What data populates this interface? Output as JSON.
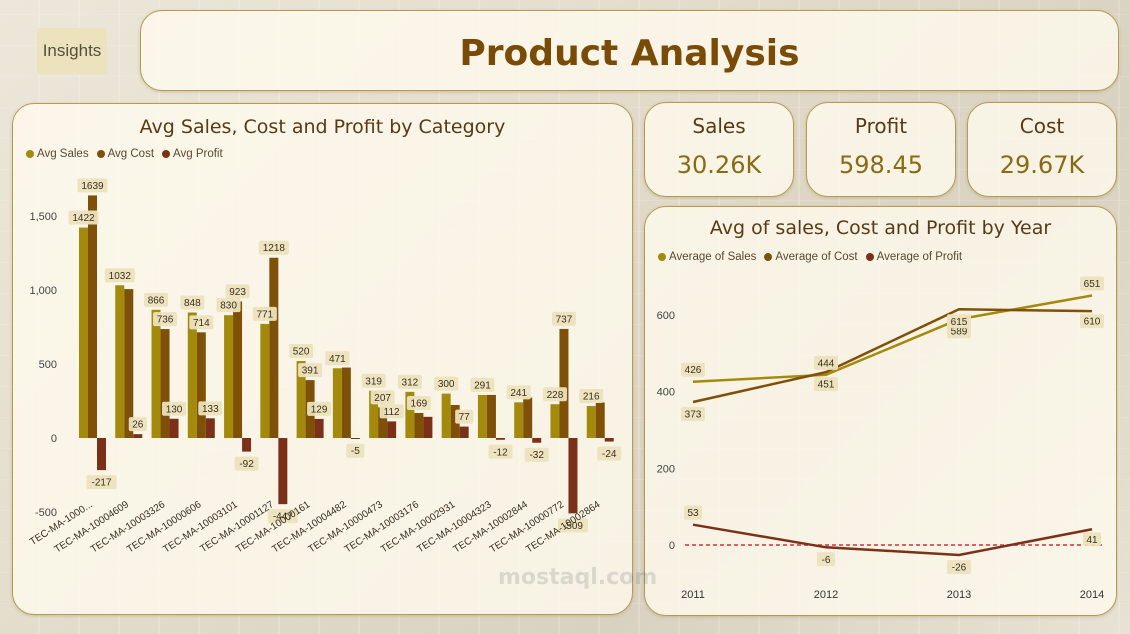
{
  "header": {
    "insights_label": "Insights",
    "title": "Product Analysis"
  },
  "kpis": [
    {
      "label": "Sales",
      "value": "30.26K"
    },
    {
      "label": "Profit",
      "value": "598.45"
    },
    {
      "label": "Cost",
      "value": "29.67K"
    }
  ],
  "colors": {
    "sales": "#a48a0c",
    "cost": "#7f5008",
    "profit": "#7b3118",
    "label_bg": "#ece2bd",
    "zero_line": "#e06060"
  },
  "watermark": "mostaql.com",
  "chart_data": [
    {
      "type": "bar",
      "title": "Avg Sales, Cost and Profit by Category",
      "categories": [
        "TEC-MA-1000...",
        "TEC-MA-10004609",
        "TEC-MA-10003326",
        "TEC-MA-10000606",
        "TEC-MA-10003101",
        "TEC-MA-10001127",
        "TEC-MA-10000161",
        "TEC-MA-10004482",
        "TEC-MA-10000473",
        "TEC-MA-10003176",
        "TEC-MA-10002931",
        "TEC-MA-10004323",
        "TEC-MA-10002844",
        "TEC-MA-10000772",
        "TEC-MA-10002864"
      ],
      "series": [
        {
          "name": "Avg Sales",
          "values": [
            1422,
            1032,
            866,
            848,
            830,
            771,
            520,
            471,
            319,
            312,
            300,
            291,
            241,
            228,
            216
          ],
          "labels": [
            "1422",
            "1032",
            "866",
            "848",
            "830",
            "771",
            "520",
            "471",
            "319",
            "312",
            "300",
            "291",
            "241",
            "228",
            "216"
          ]
        },
        {
          "name": "Avg Cost",
          "values": [
            1639,
            1006,
            736,
            714,
            923,
            1218,
            391,
            476,
            207,
            169,
            223,
            291,
            273,
            737,
            240
          ],
          "labels": [
            "1639",
            "",
            "736",
            "714",
            "923",
            "1218",
            "391",
            "",
            "207",
            "169",
            "",
            "",
            "",
            "737",
            ""
          ]
        },
        {
          "name": "Avg Profit",
          "values": [
            -217,
            26,
            130,
            133,
            -92,
            -447,
            129,
            -5,
            112,
            143,
            77,
            -12,
            -32,
            -509,
            -24
          ],
          "labels": [
            "-217",
            "26",
            "130",
            "133",
            "-92",
            "-447",
            "129",
            "-5",
            "112",
            "",
            "77",
            "-12",
            "-32",
            "-509",
            "-24"
          ]
        }
      ],
      "yticks": [
        "-500",
        "0",
        "500",
        "1,000",
        "1,500"
      ],
      "ylim": [
        -600,
        1750
      ]
    },
    {
      "type": "line",
      "title": "Avg of sales, Cost and Profit by Year",
      "x": [
        "2011",
        "2012",
        "2013",
        "2014"
      ],
      "series": [
        {
          "name": "Average of Sales",
          "values": [
            426,
            444,
            589,
            651
          ],
          "labels": [
            "426",
            "444",
            "589",
            "651"
          ]
        },
        {
          "name": "Average of Cost",
          "values": [
            373,
            451,
            615,
            610
          ],
          "labels": [
            "373",
            "451",
            "615",
            "610"
          ]
        },
        {
          "name": "Average of Profit",
          "values": [
            53,
            -6,
            -26,
            41
          ],
          "labels": [
            "53",
            "-6",
            "-26",
            "41"
          ]
        }
      ],
      "yticks": [
        "0",
        "200",
        "400",
        "600"
      ],
      "ylim": [
        -60,
        720
      ]
    }
  ]
}
